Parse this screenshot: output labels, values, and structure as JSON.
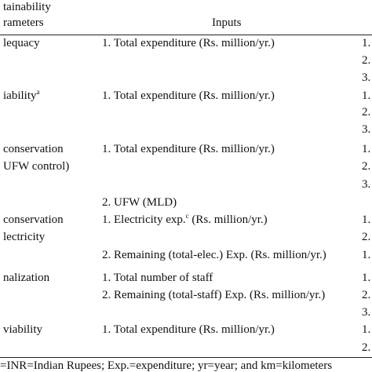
{
  "header": {
    "parameter": [
      "tainability",
      "rameters"
    ],
    "inputs": "Inputs"
  },
  "rows": [
    {
      "parameter": [
        "lequacy"
      ],
      "inputs": [
        "1. Total expenditure (Rs. million/yr.)"
      ],
      "outputs": [
        "1.",
        "2.",
        "3."
      ]
    },
    {
      "parameter": [
        {
          "text": "iability",
          "sup": "a"
        }
      ],
      "inputs": [
        "1. Total expenditure (Rs. million/yr.)"
      ],
      "outputs": [
        "1.",
        "2.",
        "3."
      ]
    },
    {
      "parameter": [
        "conservation",
        "UFW control)"
      ],
      "inputs": [
        "1. Total expenditure (Rs. million/yr.)",
        "2. UFW (MLD)"
      ],
      "outputs": [
        "1.",
        "2.",
        "3."
      ]
    },
    {
      "parameter": [
        "conservation",
        "lectricity"
      ],
      "inputs": [
        {
          "text": "1. Electricity exp.",
          "sup": "c",
          "after": " (Rs. million/yr.)"
        },
        "2. Remaining (total-elec.) Exp. (Rs. million/yr.)"
      ],
      "outputs": [
        "1.",
        "2.",
        "1."
      ]
    },
    {
      "parameter": [
        "nalization"
      ],
      "inputs": [
        "1. Total number of staff",
        "2. Remaining (total-staff) Exp. (Rs. million/yr.)"
      ],
      "outputs": [
        "1.",
        "2.",
        "3."
      ]
    },
    {
      "parameter": [
        "viability"
      ],
      "inputs": [
        "1. Total expenditure (Rs. million/yr.)"
      ],
      "outputs": [
        "1.",
        "2."
      ]
    }
  ],
  "footnote": "=INR=Indian Rupees; Exp.=expenditure; yr=year; and km=kilometers"
}
